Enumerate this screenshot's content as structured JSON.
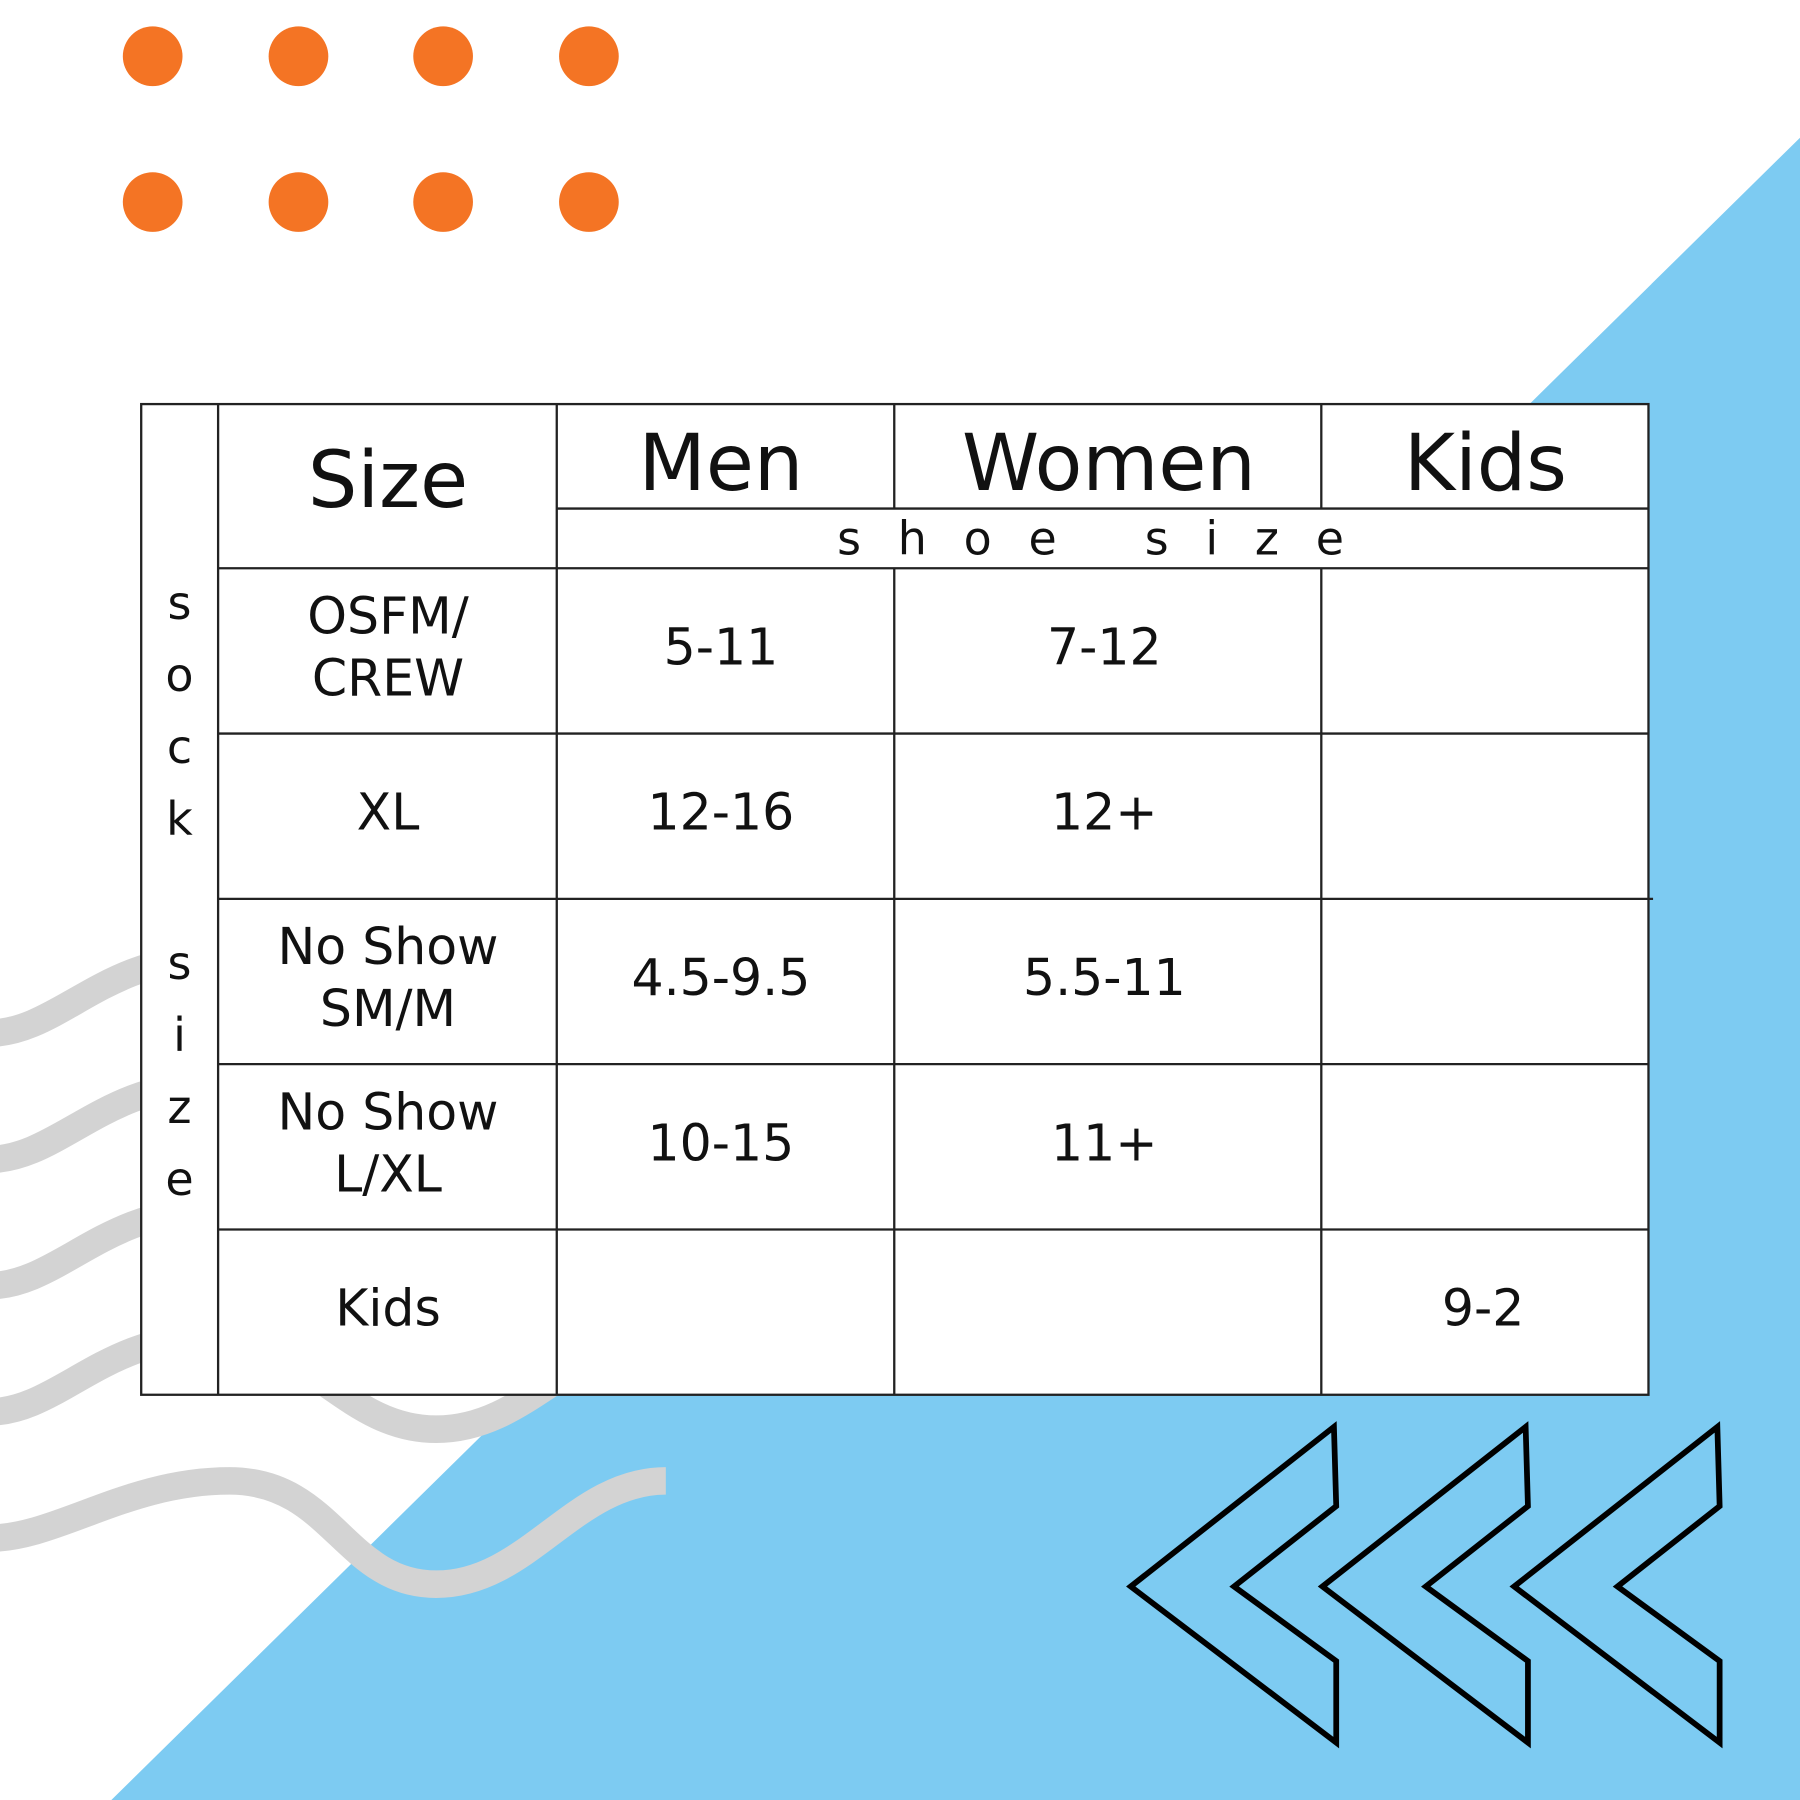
{
  "side_label": "sock size",
  "header": {
    "size": "Size",
    "men": "Men",
    "women": "Women",
    "kids": "Kids",
    "subheader": "shoe size"
  },
  "table": {
    "rows": [
      {
        "size": [
          "OSFM/",
          "CREW"
        ],
        "men": "5-11",
        "women": "7-12"
      },
      {
        "size": [
          "XL"
        ],
        "men": "12-16",
        "women": "12+"
      },
      {
        "size": [
          "No Show",
          "SM/M"
        ],
        "men": "4.5-9.5",
        "women": "5.5-11"
      },
      {
        "size": [
          "No Show",
          "L/XL"
        ],
        "men": "10-15",
        "women": "11+"
      },
      {
        "size": [
          "Kids"
        ],
        "kids": "9-2"
      }
    ]
  }
}
